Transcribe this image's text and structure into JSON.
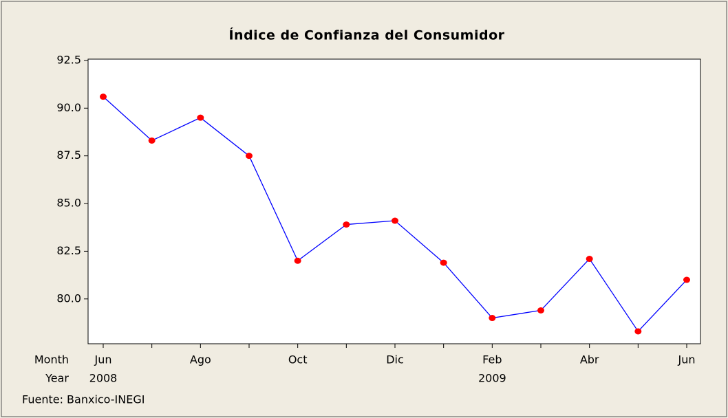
{
  "chart_data": {
    "type": "line",
    "title": "Índice de Confianza del Consumidor",
    "x_row_labels": [
      "Month",
      "Year"
    ],
    "categories": [
      "Jun",
      null,
      "Ago",
      null,
      "Oct",
      null,
      "Dic",
      null,
      "Feb",
      null,
      "Abr",
      null,
      "Jun"
    ],
    "years": [
      "2008",
      null,
      null,
      null,
      null,
      null,
      null,
      null,
      "2009",
      null,
      null,
      null,
      null
    ],
    "series": [
      {
        "name": "Índice",
        "color": "#0000ff",
        "marker_color": "#ff0000",
        "values": [
          90.6,
          88.3,
          89.5,
          87.5,
          82.0,
          83.9,
          84.1,
          81.9,
          79.0,
          79.4,
          82.1,
          78.3,
          81.0
        ]
      }
    ],
    "ylim": [
      77.65,
      92.57
    ],
    "yticks": [
      {
        "value": 80,
        "label": "80.0"
      },
      82.5,
      {
        "value": 85,
        "label": "85.0"
      },
      87.5,
      {
        "value": 90,
        "label": "90.0"
      },
      92.5
    ],
    "footnote": "Fuente: Banxico-INEGI"
  }
}
